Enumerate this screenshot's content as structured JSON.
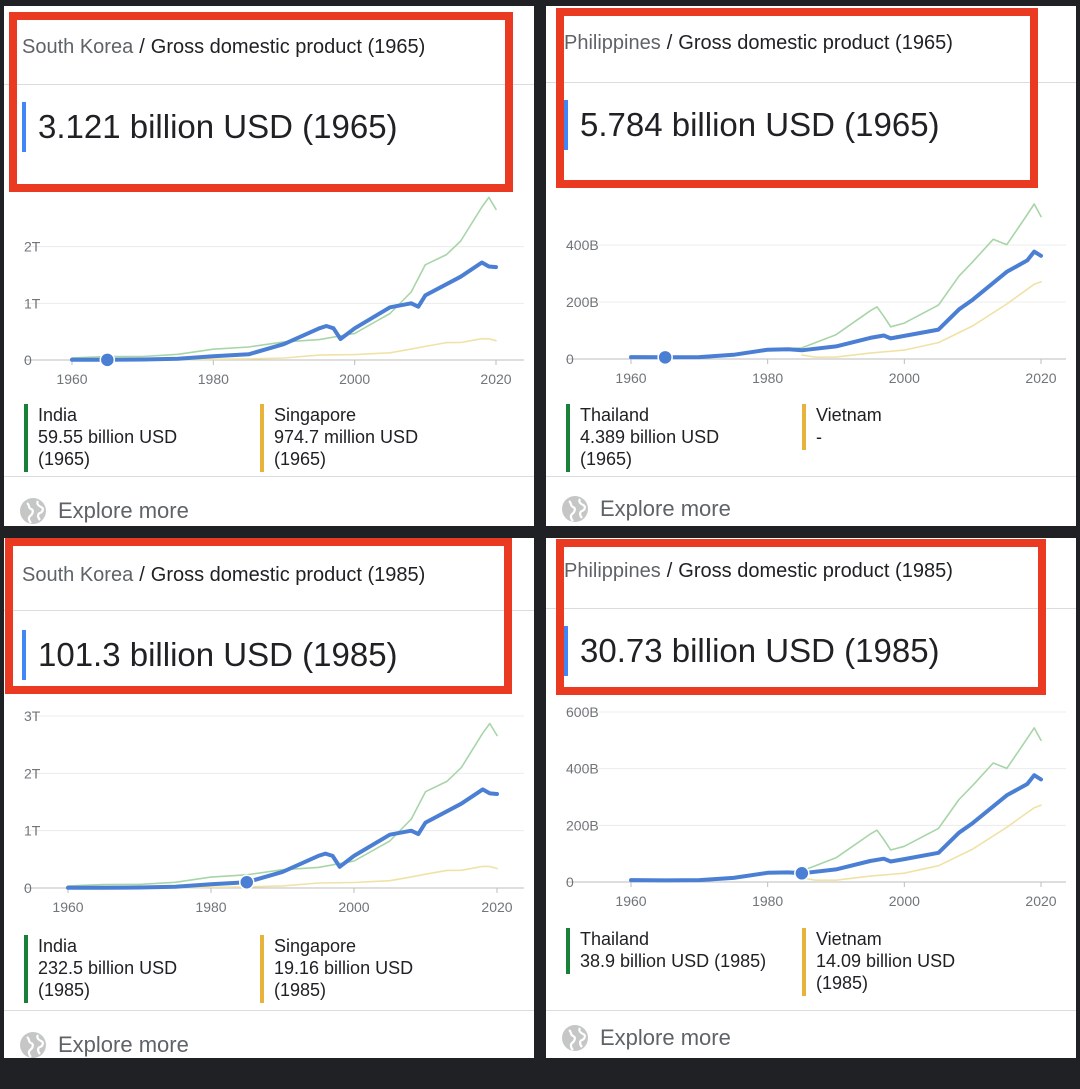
{
  "panels": [
    {
      "country": "South Korea",
      "metric": "Gross domestic product (1965)",
      "value": "3.121 billion USD (1965)",
      "legend": [
        {
          "name": "India",
          "lines": [
            "59.55 billion USD",
            "(1965)"
          ],
          "color": "#188038"
        },
        {
          "name": "Singapore",
          "lines": [
            "974.7 million USD",
            "(1965)"
          ],
          "color": "#e8b33a"
        }
      ],
      "explore": "Explore more"
    },
    {
      "country": "Philippines",
      "metric": "Gross domestic product (1965)",
      "value": "5.784 billion USD (1965)",
      "legend": [
        {
          "name": "Thailand",
          "lines": [
            "4.389 billion USD",
            "(1965)"
          ],
          "color": "#188038"
        },
        {
          "name": "Vietnam",
          "lines": [
            "-"
          ],
          "color": "#e8b33a"
        }
      ],
      "explore": "Explore more"
    },
    {
      "country": "South Korea",
      "metric": "Gross domestic product (1985)",
      "value": "101.3 billion USD (1985)",
      "legend": [
        {
          "name": "India",
          "lines": [
            "232.5 billion USD",
            "(1985)"
          ],
          "color": "#188038"
        },
        {
          "name": "Singapore",
          "lines": [
            "19.16 billion USD",
            "(1985)"
          ],
          "color": "#e8b33a"
        }
      ],
      "explore": "Explore more"
    },
    {
      "country": "Philippines",
      "metric": "Gross domestic product (1985)",
      "value": "30.73 billion USD (1985)",
      "legend": [
        {
          "name": "Thailand",
          "lines": [
            "38.9 billion USD (1985)"
          ],
          "color": "#188038"
        },
        {
          "name": "Vietnam",
          "lines": [
            "14.09 billion USD",
            "(1985)"
          ],
          "color": "#e8b33a"
        }
      ],
      "explore": "Explore more"
    }
  ],
  "chart_data": [
    {
      "type": "line",
      "title": "",
      "y_tick_labels": [
        "0",
        "1T",
        "2T"
      ],
      "x_tick_labels": [
        "1960",
        "1980",
        "2000",
        "2020"
      ],
      "xlim": [
        1960,
        2020
      ],
      "ylim": [
        0,
        3
      ],
      "grid": true,
      "highlight": {
        "x": 1965,
        "y": 0.003
      },
      "series": [
        {
          "name": "South Korea",
          "color": "#4a7fd4",
          "x": [
            1960,
            1965,
            1970,
            1975,
            1980,
            1985,
            1990,
            1995,
            1996,
            1997,
            1998,
            2000,
            2005,
            2008,
            2009,
            2010,
            2015,
            2018,
            2019,
            2020
          ],
          "y": [
            0.004,
            0.003,
            0.009,
            0.021,
            0.065,
            0.101,
            0.28,
            0.56,
            0.6,
            0.56,
            0.37,
            0.56,
            0.93,
            1.0,
            0.94,
            1.14,
            1.47,
            1.72,
            1.65,
            1.64
          ]
        },
        {
          "name": "India",
          "color": "#a8d5a8",
          "x": [
            1960,
            1965,
            1970,
            1975,
            1980,
            1985,
            1990,
            1995,
            2000,
            2005,
            2008,
            2010,
            2013,
            2015,
            2018,
            2019,
            2020
          ],
          "y": [
            0.037,
            0.06,
            0.062,
            0.1,
            0.19,
            0.23,
            0.32,
            0.36,
            0.47,
            0.82,
            1.2,
            1.68,
            1.86,
            2.1,
            2.7,
            2.87,
            2.66
          ]
        },
        {
          "name": "Singapore",
          "color": "#f0e2a6",
          "x": [
            1960,
            1965,
            1970,
            1975,
            1980,
            1985,
            1990,
            1995,
            2000,
            2005,
            2008,
            2010,
            2013,
            2015,
            2018,
            2019,
            2020
          ],
          "y": [
            0.001,
            0.001,
            0.002,
            0.006,
            0.012,
            0.019,
            0.036,
            0.087,
            0.096,
            0.127,
            0.193,
            0.24,
            0.307,
            0.308,
            0.376,
            0.375,
            0.34
          ]
        }
      ]
    },
    {
      "type": "line",
      "title": "",
      "y_tick_labels": [
        "0",
        "200B",
        "400B"
      ],
      "x_tick_labels": [
        "1960",
        "1980",
        "2000",
        "2020"
      ],
      "xlim": [
        1960,
        2020
      ],
      "ylim": [
        0,
        600
      ],
      "grid": true,
      "highlight": {
        "x": 1965,
        "y": 5.8
      },
      "series": [
        {
          "name": "Philippines",
          "color": "#4a7fd4",
          "x": [
            1960,
            1965,
            1970,
            1975,
            1980,
            1983,
            1985,
            1990,
            1995,
            1997,
            1998,
            2000,
            2005,
            2008,
            2010,
            2015,
            2018,
            2019,
            2020
          ],
          "y": [
            6.7,
            5.8,
            6.6,
            14.6,
            32.5,
            34,
            30.7,
            44.3,
            74,
            82.3,
            72.2,
            81,
            103,
            174,
            208,
            306,
            346,
            377,
            362
          ]
        },
        {
          "name": "Thailand",
          "color": "#a8d5a8",
          "x": [
            1960,
            1965,
            1970,
            1975,
            1980,
            1985,
            1990,
            1995,
            1996,
            1997,
            1998,
            2000,
            2005,
            2008,
            2010,
            2013,
            2015,
            2018,
            2019,
            2020
          ],
          "y": [
            2.8,
            4.4,
            7.1,
            14.9,
            32.4,
            38.9,
            85.3,
            169,
            183,
            150,
            113,
            126,
            189,
            291,
            341,
            420,
            401,
            507,
            544,
            500
          ]
        },
        {
          "name": "Vietnam",
          "color": "#f0e2a6",
          "x": [
            1985,
            1987,
            1990,
            1995,
            2000,
            2005,
            2010,
            2015,
            2018,
            2019,
            2020
          ],
          "y": [
            14.1,
            6.3,
            6.5,
            20.7,
            31.2,
            57.6,
            116,
            193,
            245,
            262,
            271
          ]
        }
      ]
    },
    {
      "type": "line",
      "title": "",
      "y_tick_labels": [
        "0",
        "1T",
        "2T",
        "3T"
      ],
      "x_tick_labels": [
        "1960",
        "1980",
        "2000",
        "2020"
      ],
      "xlim": [
        1960,
        2020
      ],
      "ylim": [
        0,
        3
      ],
      "grid": true,
      "highlight": {
        "x": 1985,
        "y": 0.101
      },
      "series": [
        {
          "name": "South Korea",
          "color": "#4a7fd4",
          "x": [
            1960,
            1965,
            1970,
            1975,
            1980,
            1985,
            1990,
            1995,
            1996,
            1997,
            1998,
            2000,
            2005,
            2008,
            2009,
            2010,
            2015,
            2018,
            2019,
            2020
          ],
          "y": [
            0.004,
            0.003,
            0.009,
            0.021,
            0.065,
            0.101,
            0.28,
            0.56,
            0.6,
            0.56,
            0.37,
            0.56,
            0.93,
            1.0,
            0.94,
            1.14,
            1.47,
            1.72,
            1.65,
            1.64
          ]
        },
        {
          "name": "India",
          "color": "#a8d5a8",
          "x": [
            1960,
            1965,
            1970,
            1975,
            1980,
            1985,
            1990,
            1995,
            2000,
            2005,
            2008,
            2010,
            2013,
            2015,
            2018,
            2019,
            2020
          ],
          "y": [
            0.037,
            0.06,
            0.062,
            0.1,
            0.19,
            0.23,
            0.32,
            0.36,
            0.47,
            0.82,
            1.2,
            1.68,
            1.86,
            2.1,
            2.7,
            2.87,
            2.66
          ]
        },
        {
          "name": "Singapore",
          "color": "#f0e2a6",
          "x": [
            1960,
            1965,
            1970,
            1975,
            1980,
            1985,
            1990,
            1995,
            2000,
            2005,
            2008,
            2010,
            2013,
            2015,
            2018,
            2019,
            2020
          ],
          "y": [
            0.001,
            0.001,
            0.002,
            0.006,
            0.012,
            0.019,
            0.036,
            0.087,
            0.096,
            0.127,
            0.193,
            0.24,
            0.307,
            0.308,
            0.376,
            0.375,
            0.34
          ]
        }
      ]
    },
    {
      "type": "line",
      "title": "",
      "y_tick_labels": [
        "0",
        "200B",
        "400B",
        "600B"
      ],
      "x_tick_labels": [
        "1960",
        "1980",
        "2000",
        "2020"
      ],
      "xlim": [
        1960,
        2020
      ],
      "ylim": [
        0,
        600
      ],
      "grid": true,
      "highlight": {
        "x": 1985,
        "y": 30.7
      },
      "series": [
        {
          "name": "Philippines",
          "color": "#4a7fd4",
          "x": [
            1960,
            1965,
            1970,
            1975,
            1980,
            1983,
            1985,
            1990,
            1995,
            1997,
            1998,
            2000,
            2005,
            2008,
            2010,
            2015,
            2018,
            2019,
            2020
          ],
          "y": [
            6.7,
            5.8,
            6.6,
            14.6,
            32.5,
            34,
            30.7,
            44.3,
            74,
            82.3,
            72.2,
            81,
            103,
            174,
            208,
            306,
            346,
            377,
            362
          ]
        },
        {
          "name": "Thailand",
          "color": "#a8d5a8",
          "x": [
            1960,
            1965,
            1970,
            1975,
            1980,
            1985,
            1990,
            1995,
            1996,
            1997,
            1998,
            2000,
            2005,
            2008,
            2010,
            2013,
            2015,
            2018,
            2019,
            2020
          ],
          "y": [
            2.8,
            4.4,
            7.1,
            14.9,
            32.4,
            38.9,
            85.3,
            169,
            183,
            150,
            113,
            126,
            189,
            291,
            341,
            420,
            401,
            507,
            544,
            500
          ]
        },
        {
          "name": "Vietnam",
          "color": "#f0e2a6",
          "x": [
            1985,
            1987,
            1990,
            1995,
            2000,
            2005,
            2010,
            2015,
            2018,
            2019,
            2020
          ],
          "y": [
            14.1,
            6.3,
            6.5,
            20.7,
            31.2,
            57.6,
            116,
            193,
            245,
            262,
            271
          ]
        }
      ]
    }
  ]
}
